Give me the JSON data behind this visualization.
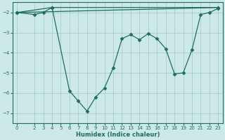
{
  "xlabel": "Humidex (Indice chaleur)",
  "bg_color": "#cce8e8",
  "line_color": "#1e6e5e",
  "grid_color": "#aacccc",
  "xlim": [
    -0.5,
    23.5
  ],
  "ylim": [
    -7.5,
    -1.5
  ],
  "yticks": [
    -7,
    -6,
    -5,
    -4,
    -3,
    -2
  ],
  "xtick_labels": [
    "0",
    "2",
    "3",
    "4",
    "5",
    "6",
    "7",
    "8",
    "9",
    "10",
    "11",
    "12",
    "13",
    "14",
    "15",
    "16",
    "17",
    "18",
    "19",
    "20",
    "21",
    "22",
    "23"
  ],
  "xtick_vals": [
    0,
    2,
    3,
    4,
    5,
    6,
    7,
    8,
    9,
    10,
    11,
    12,
    13,
    14,
    15,
    16,
    17,
    18,
    19,
    20,
    21,
    22,
    23
  ],
  "curve_x": [
    0,
    2,
    3,
    4,
    6,
    7,
    8,
    9,
    10,
    11,
    12,
    13,
    14,
    15,
    16,
    17,
    18,
    19,
    20,
    21,
    22,
    23
  ],
  "curve_y": [
    -2.0,
    -2.1,
    -2.0,
    -1.75,
    -5.9,
    -6.4,
    -6.9,
    -6.2,
    -5.75,
    -4.75,
    -3.3,
    -3.1,
    -3.35,
    -3.05,
    -3.3,
    -3.8,
    -5.05,
    -5.0,
    -3.85,
    -2.1,
    -2.0,
    -1.8
  ],
  "line1_x": [
    0,
    4,
    23
  ],
  "line1_y": [
    -2.0,
    -1.75,
    -1.75
  ],
  "line2_x": [
    0,
    23
  ],
  "line2_y": [
    -2.0,
    -1.75
  ],
  "marker": "D",
  "markersize": 2.5,
  "linewidth": 0.9,
  "tick_fontsize": 5.0,
  "xlabel_fontsize": 6.0
}
